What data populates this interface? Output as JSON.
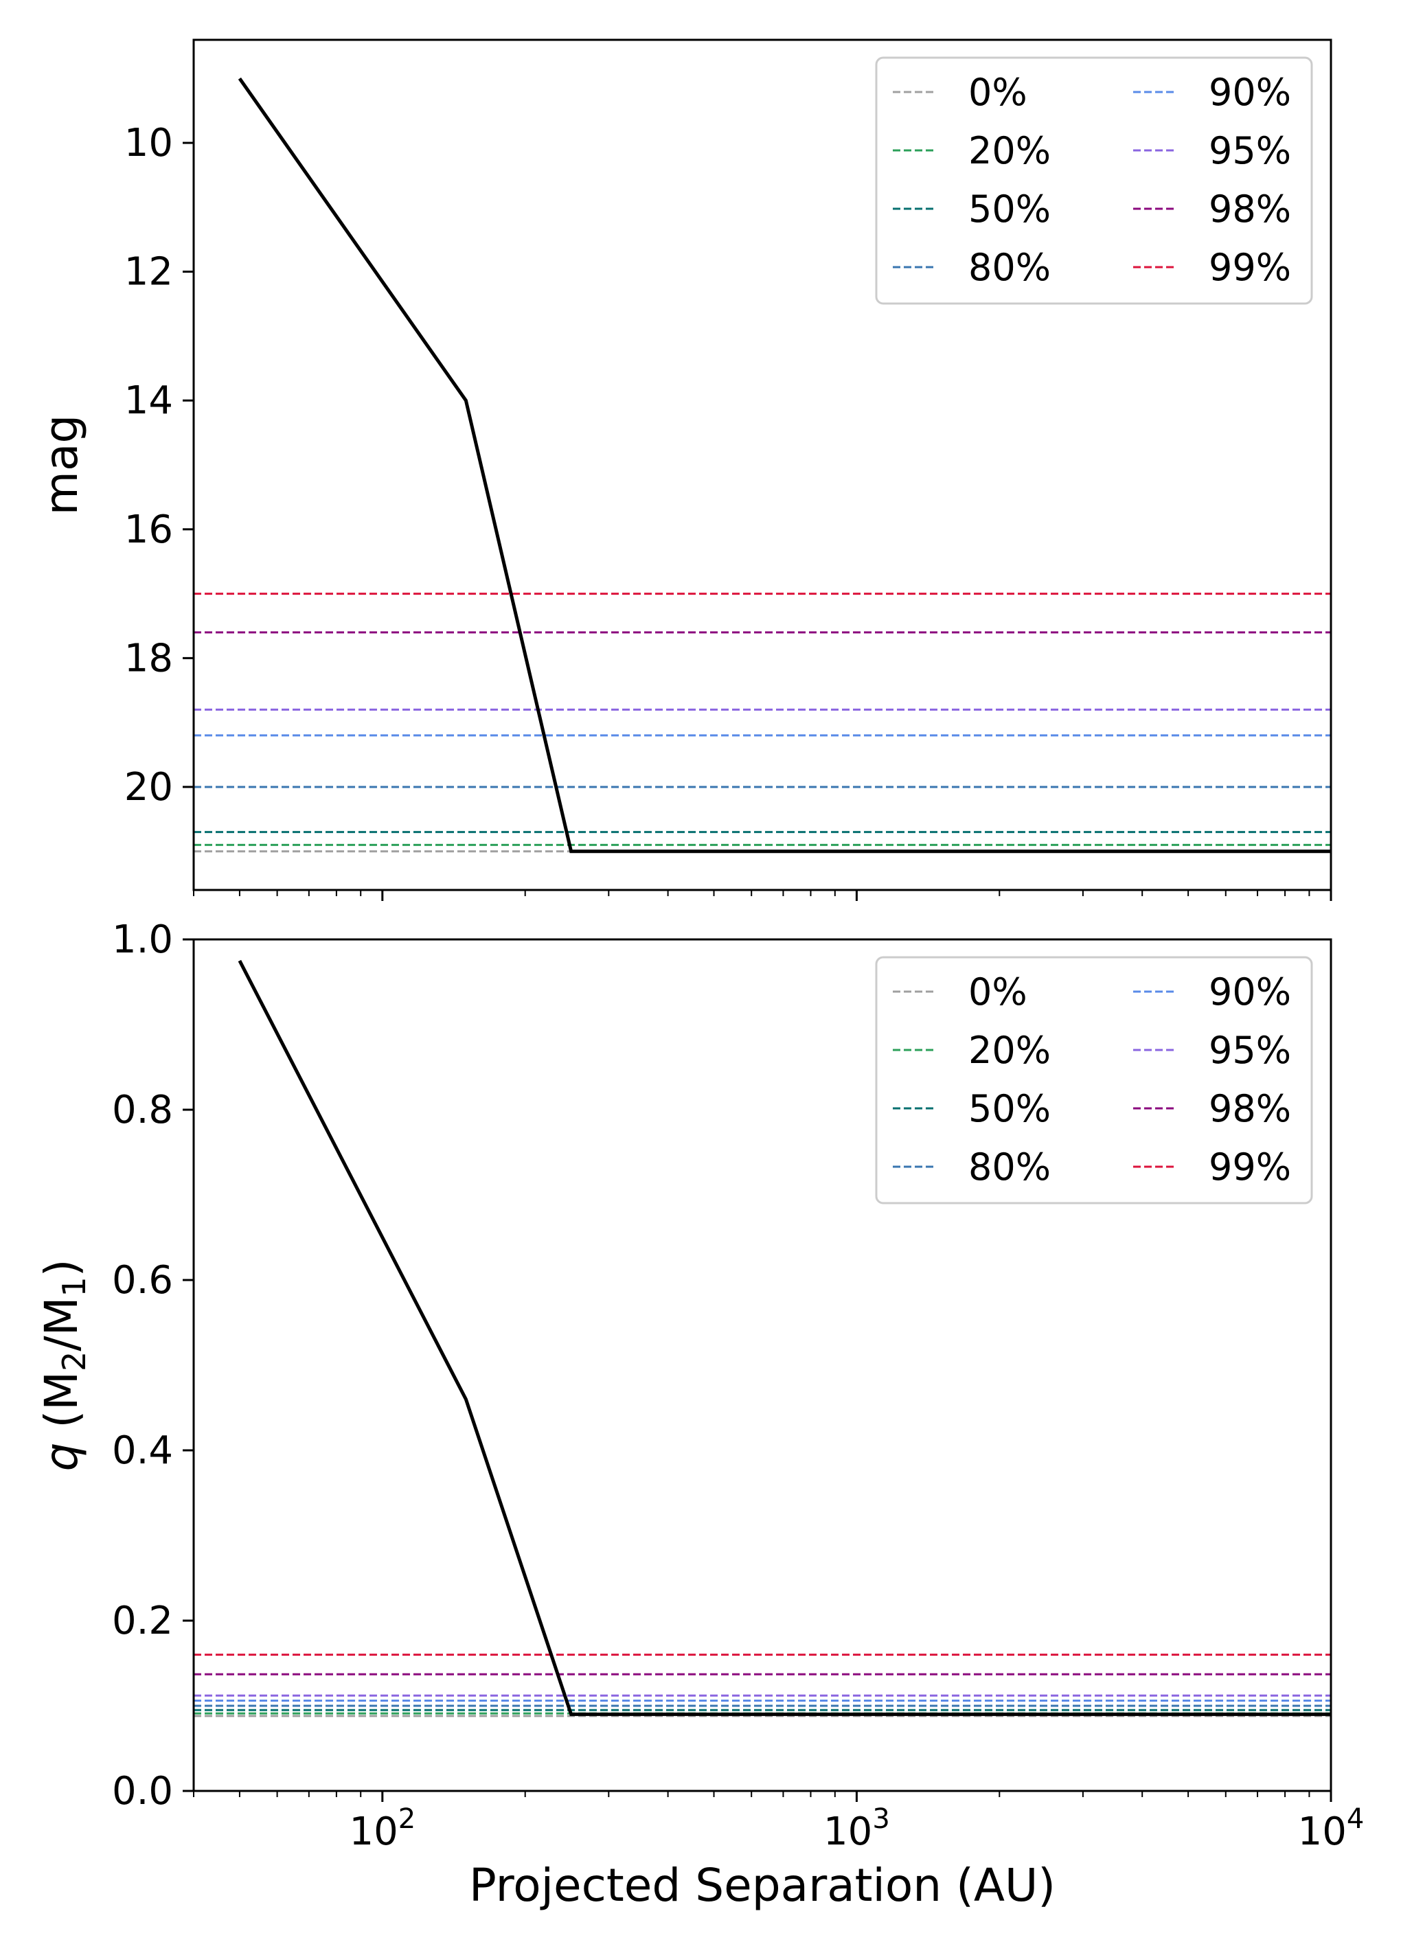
{
  "chart_data": [
    {
      "type": "line",
      "name": "top-panel",
      "xscale": "log",
      "xlim": [
        40,
        10000
      ],
      "ylim": [
        21.6,
        8.4
      ],
      "yinverted": true,
      "ylabel": "mag",
      "xlabel": "",
      "yticks": [
        10,
        12,
        14,
        16,
        18,
        20
      ],
      "ytick_labels": [
        "10",
        "12",
        "14",
        "16",
        "18",
        "20"
      ],
      "grid": false,
      "legend_position": "top-right",
      "contrast_curve": {
        "color": "#000000",
        "x": [
          50,
          150,
          250,
          10000
        ],
        "y": [
          9.0,
          14.0,
          21.0,
          21.0
        ]
      },
      "series": [
        {
          "name": "0%",
          "legend": "0%",
          "color": "#a0a0a0",
          "value": 21.0
        },
        {
          "name": "20%",
          "legend": "20%",
          "color": "#2ca05a",
          "value": 20.9
        },
        {
          "name": "50%",
          "legend": "50%",
          "color": "#087070",
          "value": 20.7
        },
        {
          "name": "80%",
          "legend": "80%",
          "color": "#3a76b0",
          "value": 20.0
        },
        {
          "name": "90%",
          "legend": "90%",
          "color": "#5a8be8",
          "value": 19.2
        },
        {
          "name": "95%",
          "legend": "95%",
          "color": "#8a65e0",
          "value": 18.8
        },
        {
          "name": "98%",
          "legend": "98%",
          "color": "#8b0a7e",
          "value": 17.6
        },
        {
          "name": "99%",
          "legend": "99%",
          "color": "#dc143c",
          "value": 17.0
        }
      ]
    },
    {
      "type": "line",
      "name": "bottom-panel",
      "xscale": "log",
      "xlim": [
        40,
        10000
      ],
      "ylim": [
        0.0,
        1.0
      ],
      "yinverted": false,
      "ylabel": "q (M2/M1)",
      "ylabel_parts": {
        "var": "q",
        "open": " (M",
        "sub1": "2",
        "mid": "/M",
        "sub2": "1",
        "close": ")"
      },
      "xlabel": "Projected Separation (AU)",
      "yticks": [
        0.0,
        0.2,
        0.4,
        0.6,
        0.8,
        1.0
      ],
      "ytick_labels": [
        "0.0",
        "0.2",
        "0.4",
        "0.6",
        "0.8",
        "1.0"
      ],
      "xticks": [
        100,
        1000,
        10000
      ],
      "xtick_labels": [
        {
          "base": "10",
          "exp": "2"
        },
        {
          "base": "10",
          "exp": "3"
        },
        {
          "base": "10",
          "exp": "4"
        }
      ],
      "grid": false,
      "legend_position": "top-right",
      "contrast_curve": {
        "color": "#000000",
        "x": [
          50,
          150,
          250,
          10000
        ],
        "y": [
          0.975,
          0.46,
          0.09,
          0.09
        ]
      },
      "series": [
        {
          "name": "0%",
          "legend": "0%",
          "color": "#a0a0a0",
          "value": 0.088
        },
        {
          "name": "20%",
          "legend": "20%",
          "color": "#2ca05a",
          "value": 0.091
        },
        {
          "name": "50%",
          "legend": "50%",
          "color": "#087070",
          "value": 0.095
        },
        {
          "name": "80%",
          "legend": "80%",
          "color": "#3a76b0",
          "value": 0.1
        },
        {
          "name": "90%",
          "legend": "90%",
          "color": "#5a8be8",
          "value": 0.106
        },
        {
          "name": "95%",
          "legend": "95%",
          "color": "#8a65e0",
          "value": 0.112
        },
        {
          "name": "98%",
          "legend": "98%",
          "color": "#8b0a7e",
          "value": 0.137
        },
        {
          "name": "99%",
          "legend": "99%",
          "color": "#dc143c",
          "value": 0.16
        }
      ]
    }
  ]
}
